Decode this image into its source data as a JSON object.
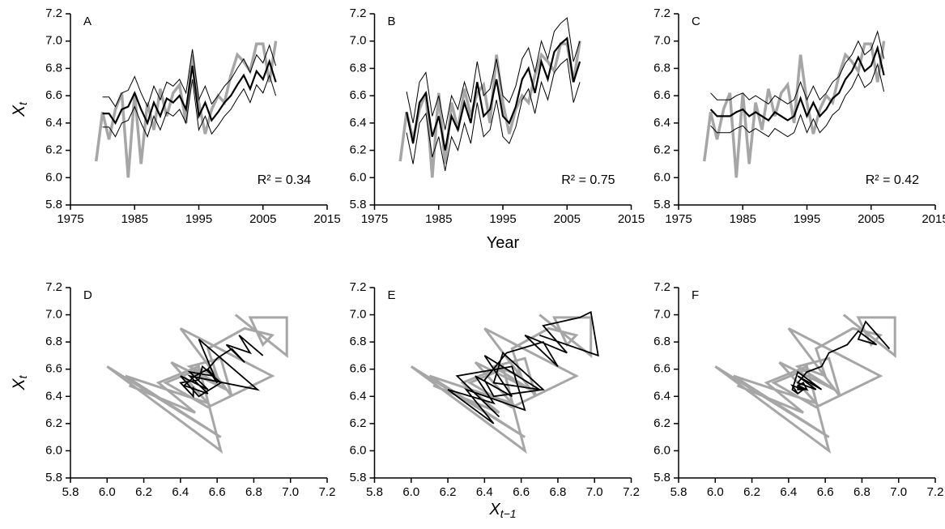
{
  "chart_data": [
    {
      "type": "line",
      "panel_label": "A",
      "annotation": "R² = 0.34",
      "ylabel": "X",
      "ylabel_sub": "t",
      "x": [
        1979,
        1980,
        1981,
        1982,
        1983,
        1984,
        1985,
        1986,
        1987,
        1988,
        1989,
        1990,
        1991,
        1992,
        1993,
        1994,
        1995,
        1996,
        1997,
        1998,
        1999,
        2000,
        2001,
        2002,
        2003,
        2004,
        2005,
        2006,
        2007
      ],
      "xlim": [
        1975,
        2015
      ],
      "xticks": [
        1975,
        1985,
        1995,
        2005,
        2015
      ],
      "ylim": [
        5.8,
        7.2
      ],
      "yticks": [
        5.8,
        {
          "value": 6,
          "label": "6.0"
        },
        6.2,
        6.4,
        6.6,
        6.8,
        {
          "value": 7,
          "label": "7.0"
        },
        7.2
      ],
      "series": [
        {
          "color": "#a6a6a6",
          "linewidth": 3.5,
          "values": [
            6.12,
            6.48,
            6.28,
            6.5,
            6.62,
            6.0,
            6.62,
            6.1,
            6.55,
            6.35,
            6.65,
            6.45,
            6.62,
            6.68,
            6.4,
            6.9,
            6.55,
            6.32,
            6.5,
            6.6,
            6.55,
            6.75,
            6.9,
            6.85,
            6.78,
            6.98,
            6.98,
            6.7,
            7.0
          ]
        },
        {
          "color": "#000000",
          "linewidth": 1,
          "values": [
            null,
            6.59,
            6.59,
            6.52,
            6.62,
            6.64,
            6.74,
            6.62,
            6.52,
            6.67,
            6.57,
            6.7,
            6.67,
            6.72,
            6.62,
            6.94,
            6.57,
            6.67,
            6.54,
            6.6,
            6.67,
            6.72,
            6.8,
            6.87,
            6.77,
            6.9,
            6.84,
            6.97,
            6.82
          ]
        },
        {
          "color": "#000000",
          "linewidth": 1,
          "values": [
            null,
            6.37,
            6.37,
            6.3,
            6.4,
            6.42,
            6.52,
            6.4,
            6.3,
            6.45,
            6.35,
            6.48,
            6.45,
            6.5,
            6.4,
            6.72,
            6.35,
            6.45,
            6.32,
            6.38,
            6.45,
            6.5,
            6.58,
            6.65,
            6.55,
            6.68,
            6.62,
            6.75,
            6.6
          ]
        },
        {
          "color": "#000000",
          "linewidth": 2.2,
          "values": [
            null,
            6.47,
            6.47,
            6.4,
            6.5,
            6.52,
            6.62,
            6.5,
            6.4,
            6.55,
            6.45,
            6.58,
            6.55,
            6.6,
            6.5,
            6.82,
            6.45,
            6.55,
            6.42,
            6.48,
            6.55,
            6.6,
            6.68,
            6.75,
            6.65,
            6.78,
            6.72,
            6.85,
            6.7
          ]
        }
      ]
    },
    {
      "type": "line",
      "panel_label": "B",
      "annotation": "R² = 0.75",
      "xlabel": "Year",
      "x": [
        1979,
        1980,
        1981,
        1982,
        1983,
        1984,
        1985,
        1986,
        1987,
        1988,
        1989,
        1990,
        1991,
        1992,
        1993,
        1994,
        1995,
        1996,
        1997,
        1998,
        1999,
        2000,
        2001,
        2002,
        2003,
        2004,
        2005,
        2006,
        2007
      ],
      "xlim": [
        1975,
        2015
      ],
      "xticks": [
        1975,
        1985,
        1995,
        2005,
        2015
      ],
      "ylim": [
        5.8,
        7.2
      ],
      "yticks": [
        5.8,
        {
          "value": 6,
          "label": "6.0"
        },
        6.2,
        6.4,
        6.6,
        6.8,
        {
          "value": 7,
          "label": "7.0"
        },
        7.2
      ],
      "series": [
        {
          "color": "#a6a6a6",
          "linewidth": 3.5,
          "values": [
            6.12,
            6.48,
            6.28,
            6.5,
            6.62,
            6.0,
            6.62,
            6.1,
            6.55,
            6.35,
            6.65,
            6.45,
            6.62,
            6.68,
            6.4,
            6.9,
            6.55,
            6.32,
            6.5,
            6.6,
            6.55,
            6.75,
            6.9,
            6.85,
            6.78,
            6.98,
            6.98,
            6.7,
            7.0
          ]
        },
        {
          "color": "#000000",
          "linewidth": 1,
          "values": [
            null,
            6.63,
            6.4,
            6.7,
            6.77,
            6.45,
            6.6,
            6.35,
            6.6,
            6.5,
            6.7,
            6.55,
            6.85,
            6.6,
            6.65,
            6.87,
            6.6,
            6.55,
            6.67,
            6.87,
            6.95,
            6.77,
            7.0,
            6.87,
            7.07,
            7.13,
            7.17,
            6.85,
            7.0
          ]
        },
        {
          "color": "#000000",
          "linewidth": 1,
          "values": [
            null,
            6.33,
            6.1,
            6.4,
            6.47,
            6.15,
            6.3,
            6.05,
            6.3,
            6.2,
            6.4,
            6.25,
            6.55,
            6.3,
            6.35,
            6.57,
            6.3,
            6.25,
            6.37,
            6.57,
            6.65,
            6.47,
            6.7,
            6.57,
            6.77,
            6.83,
            6.87,
            6.55,
            6.7
          ]
        },
        {
          "color": "#000000",
          "linewidth": 2.2,
          "values": [
            null,
            6.48,
            6.25,
            6.55,
            6.62,
            6.3,
            6.45,
            6.2,
            6.45,
            6.35,
            6.55,
            6.4,
            6.7,
            6.45,
            6.5,
            6.72,
            6.45,
            6.4,
            6.52,
            6.72,
            6.8,
            6.62,
            6.85,
            6.72,
            6.92,
            6.98,
            7.02,
            6.7,
            6.85
          ]
        }
      ]
    },
    {
      "type": "line",
      "panel_label": "C",
      "annotation": "R² = 0.42",
      "x": [
        1979,
        1980,
        1981,
        1982,
        1983,
        1984,
        1985,
        1986,
        1987,
        1988,
        1989,
        1990,
        1991,
        1992,
        1993,
        1994,
        1995,
        1996,
        1997,
        1998,
        1999,
        2000,
        2001,
        2002,
        2003,
        2004,
        2005,
        2006,
        2007
      ],
      "xlim": [
        1975,
        2015
      ],
      "xticks": [
        1975,
        1985,
        1995,
        2005,
        2015
      ],
      "ylim": [
        5.8,
        7.2
      ],
      "yticks": [
        5.8,
        {
          "value": 6,
          "label": "6.0"
        },
        6.2,
        6.4,
        6.6,
        6.8,
        {
          "value": 7,
          "label": "7.0"
        },
        7.2
      ],
      "series": [
        {
          "color": "#a6a6a6",
          "linewidth": 3.5,
          "values": [
            6.12,
            6.48,
            6.28,
            6.5,
            6.62,
            6.0,
            6.62,
            6.1,
            6.55,
            6.35,
            6.65,
            6.45,
            6.62,
            6.68,
            6.4,
            6.9,
            6.55,
            6.32,
            6.5,
            6.6,
            6.55,
            6.75,
            6.9,
            6.85,
            6.78,
            6.98,
            6.98,
            6.7,
            7.0
          ]
        },
        {
          "color": "#000000",
          "linewidth": 1,
          "values": [
            null,
            6.62,
            6.57,
            6.57,
            6.57,
            6.6,
            6.62,
            6.57,
            6.6,
            6.57,
            6.54,
            6.6,
            6.57,
            6.54,
            6.57,
            6.7,
            6.57,
            6.67,
            6.57,
            6.62,
            6.7,
            6.74,
            6.84,
            6.9,
            7.0,
            6.9,
            6.94,
            7.07,
            6.87
          ]
        },
        {
          "color": "#000000",
          "linewidth": 1,
          "values": [
            null,
            6.38,
            6.33,
            6.33,
            6.33,
            6.36,
            6.38,
            6.33,
            6.36,
            6.33,
            6.3,
            6.36,
            6.33,
            6.3,
            6.33,
            6.46,
            6.33,
            6.43,
            6.33,
            6.38,
            6.46,
            6.5,
            6.6,
            6.66,
            6.76,
            6.66,
            6.7,
            6.83,
            6.63
          ]
        },
        {
          "color": "#000000",
          "linewidth": 2.2,
          "values": [
            null,
            6.5,
            6.45,
            6.45,
            6.45,
            6.48,
            6.5,
            6.45,
            6.48,
            6.45,
            6.42,
            6.48,
            6.45,
            6.42,
            6.45,
            6.58,
            6.45,
            6.55,
            6.45,
            6.5,
            6.58,
            6.62,
            6.72,
            6.78,
            6.88,
            6.78,
            6.82,
            6.95,
            6.75
          ]
        }
      ]
    },
    {
      "type": "line",
      "panel_label": "D",
      "ylabel": "X",
      "ylabel_sub": "t",
      "xlim": [
        5.8,
        7.2
      ],
      "xticks": [
        5.8,
        {
          "value": 6,
          "label": "6.0"
        },
        6.2,
        6.4,
        6.6,
        6.8,
        {
          "value": 7,
          "label": "7.0"
        },
        7.2
      ],
      "ylim": [
        5.8,
        7.2
      ],
      "yticks": [
        5.8,
        {
          "value": 6,
          "label": "6.0"
        },
        6.2,
        6.4,
        6.6,
        6.8,
        {
          "value": 7,
          "label": "7.0"
        },
        7.2
      ],
      "series": [
        {
          "color": "#a6a6a6",
          "linewidth": 3,
          "x": [
            6.12,
            6.48,
            6.28,
            6.5,
            6.62,
            6.0,
            6.62,
            6.1,
            6.55,
            6.35,
            6.65,
            6.45,
            6.62,
            6.68,
            6.4,
            6.9,
            6.55,
            6.32,
            6.5,
            6.6,
            6.55,
            6.75,
            6.9,
            6.85,
            6.78,
            6.98,
            6.98,
            6.7
          ],
          "values": [
            6.48,
            6.28,
            6.5,
            6.62,
            6.0,
            6.62,
            6.1,
            6.55,
            6.35,
            6.65,
            6.45,
            6.62,
            6.68,
            6.4,
            6.9,
            6.55,
            6.32,
            6.5,
            6.6,
            6.55,
            6.75,
            6.9,
            6.85,
            6.78,
            6.98,
            6.98,
            6.7,
            7.0
          ]
        },
        {
          "color": "#000000",
          "linewidth": 1.8,
          "x": [
            6.47,
            6.47,
            6.4,
            6.5,
            6.52,
            6.62,
            6.5,
            6.4,
            6.55,
            6.45,
            6.58,
            6.55,
            6.6,
            6.5,
            6.82,
            6.45,
            6.55,
            6.42,
            6.48,
            6.55,
            6.6,
            6.68,
            6.75,
            6.65,
            6.78,
            6.72,
            6.85
          ],
          "values": [
            6.47,
            6.4,
            6.5,
            6.52,
            6.62,
            6.5,
            6.4,
            6.55,
            6.45,
            6.58,
            6.55,
            6.6,
            6.5,
            6.82,
            6.45,
            6.55,
            6.42,
            6.48,
            6.55,
            6.6,
            6.68,
            6.75,
            6.65,
            6.78,
            6.72,
            6.85,
            6.7
          ]
        }
      ]
    },
    {
      "type": "line",
      "panel_label": "E",
      "xlabel": "X",
      "xlabel_sub": "t−1",
      "xlim": [
        5.8,
        7.2
      ],
      "xticks": [
        5.8,
        {
          "value": 6,
          "label": "6.0"
        },
        6.2,
        6.4,
        6.6,
        6.8,
        {
          "value": 7,
          "label": "7.0"
        },
        7.2
      ],
      "ylim": [
        5.8,
        7.2
      ],
      "yticks": [
        5.8,
        {
          "value": 6,
          "label": "6.0"
        },
        6.2,
        6.4,
        6.6,
        6.8,
        {
          "value": 7,
          "label": "7.0"
        },
        7.2
      ],
      "series": [
        {
          "color": "#a6a6a6",
          "linewidth": 3,
          "x": [
            6.12,
            6.48,
            6.28,
            6.5,
            6.62,
            6.0,
            6.62,
            6.1,
            6.55,
            6.35,
            6.65,
            6.45,
            6.62,
            6.68,
            6.4,
            6.9,
            6.55,
            6.32,
            6.5,
            6.6,
            6.55,
            6.75,
            6.9,
            6.85,
            6.78,
            6.98,
            6.98,
            6.7
          ],
          "values": [
            6.48,
            6.28,
            6.5,
            6.62,
            6.0,
            6.62,
            6.1,
            6.55,
            6.35,
            6.65,
            6.45,
            6.62,
            6.68,
            6.4,
            6.9,
            6.55,
            6.32,
            6.5,
            6.6,
            6.55,
            6.75,
            6.9,
            6.85,
            6.78,
            6.98,
            6.98,
            6.7,
            7.0
          ]
        },
        {
          "color": "#000000",
          "linewidth": 1.8,
          "x": [
            6.48,
            6.25,
            6.55,
            6.62,
            6.3,
            6.45,
            6.2,
            6.45,
            6.35,
            6.55,
            6.4,
            6.7,
            6.45,
            6.5,
            6.72,
            6.45,
            6.4,
            6.52,
            6.72,
            6.8,
            6.62,
            6.85,
            6.72,
            6.92,
            6.98,
            7.02,
            6.7
          ],
          "values": [
            6.25,
            6.55,
            6.62,
            6.3,
            6.45,
            6.2,
            6.45,
            6.35,
            6.55,
            6.4,
            6.7,
            6.45,
            6.5,
            6.72,
            6.45,
            6.4,
            6.52,
            6.72,
            6.8,
            6.62,
            6.85,
            6.72,
            6.92,
            6.98,
            7.02,
            6.7,
            6.85
          ]
        }
      ]
    },
    {
      "type": "line",
      "panel_label": "F",
      "xlim": [
        5.8,
        7.2
      ],
      "xticks": [
        5.8,
        {
          "value": 6,
          "label": "6.0"
        },
        6.2,
        6.4,
        6.6,
        6.8,
        {
          "value": 7,
          "label": "7.0"
        },
        7.2
      ],
      "ylim": [
        5.8,
        7.2
      ],
      "yticks": [
        5.8,
        {
          "value": 6,
          "label": "6.0"
        },
        6.2,
        6.4,
        6.6,
        6.8,
        {
          "value": 7,
          "label": "7.0"
        },
        7.2
      ],
      "series": [
        {
          "color": "#a6a6a6",
          "linewidth": 3,
          "x": [
            6.12,
            6.48,
            6.28,
            6.5,
            6.62,
            6.0,
            6.62,
            6.1,
            6.55,
            6.35,
            6.65,
            6.45,
            6.62,
            6.68,
            6.4,
            6.9,
            6.55,
            6.32,
            6.5,
            6.6,
            6.55,
            6.75,
            6.9,
            6.85,
            6.78,
            6.98,
            6.98,
            6.7
          ],
          "values": [
            6.48,
            6.28,
            6.5,
            6.62,
            6.0,
            6.62,
            6.1,
            6.55,
            6.35,
            6.65,
            6.45,
            6.62,
            6.68,
            6.4,
            6.9,
            6.55,
            6.32,
            6.5,
            6.6,
            6.55,
            6.75,
            6.9,
            6.85,
            6.78,
            6.98,
            6.98,
            6.7,
            7.0
          ]
        },
        {
          "color": "#000000",
          "linewidth": 1.8,
          "x": [
            6.5,
            6.45,
            6.45,
            6.45,
            6.48,
            6.5,
            6.45,
            6.48,
            6.45,
            6.42,
            6.48,
            6.45,
            6.42,
            6.45,
            6.58,
            6.45,
            6.55,
            6.45,
            6.5,
            6.58,
            6.62,
            6.72,
            6.78,
            6.88,
            6.78,
            6.82,
            6.95
          ],
          "values": [
            6.45,
            6.45,
            6.45,
            6.48,
            6.5,
            6.45,
            6.48,
            6.45,
            6.42,
            6.48,
            6.45,
            6.42,
            6.45,
            6.58,
            6.45,
            6.55,
            6.45,
            6.5,
            6.58,
            6.62,
            6.72,
            6.78,
            6.88,
            6.78,
            6.82,
            6.95,
            6.75
          ]
        }
      ]
    }
  ]
}
